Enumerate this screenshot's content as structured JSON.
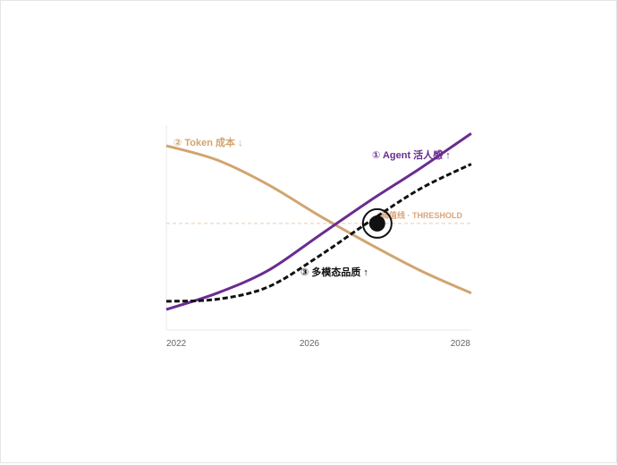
{
  "chart_data": {
    "type": "line",
    "x_ticks": [
      "2022",
      "2026",
      "2028"
    ],
    "xlim": [
      2022,
      2028
    ],
    "ylim": [
      0,
      100
    ],
    "grid": false,
    "series": [
      {
        "name": "② Token 成本 ↓",
        "color": "#d2a471",
        "style": "solid",
        "x": [
          2022,
          2023,
          2024,
          2025,
          2026,
          2027,
          2028
        ],
        "y": [
          90,
          83,
          71,
          56,
          42,
          29,
          18
        ]
      },
      {
        "name": "① Agent 活人感 ↑",
        "color": "#6a2c91",
        "style": "solid",
        "x": [
          2022,
          2023,
          2024,
          2025,
          2026,
          2027,
          2028
        ],
        "y": [
          10,
          18,
          29,
          46,
          63,
          79,
          96
        ]
      },
      {
        "name": "③ 多模态品质 ↑",
        "color": "#111111",
        "style": "dashed",
        "x": [
          2022,
          2023,
          2024,
          2025,
          2026,
          2027,
          2028
        ],
        "y": [
          14,
          15,
          21,
          36,
          53,
          69,
          81
        ]
      }
    ],
    "threshold": {
      "label": "阈值线 · THRESHOLD",
      "y": 52,
      "color": "#f2c9a5"
    },
    "intersection": {
      "x": 2026.15,
      "y": 52
    }
  }
}
